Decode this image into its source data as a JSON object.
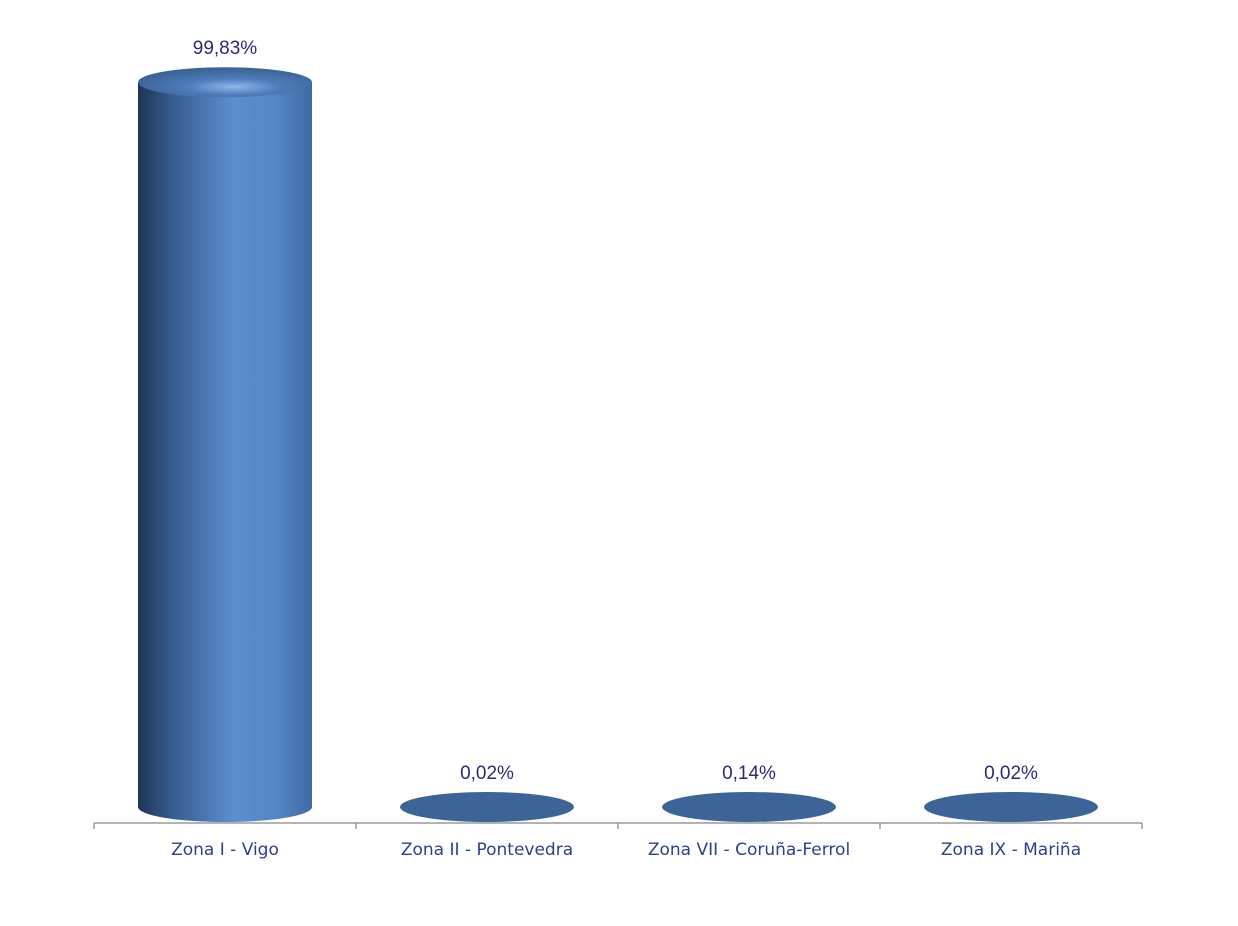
{
  "chart_data": {
    "type": "bar",
    "style": "3d-cylinder",
    "categories": [
      "Zona I - Vigo",
      "Zona II - Pontevedra",
      "Zona VII - Coruña-Ferrol",
      "Zona IX - Mariña"
    ],
    "values": [
      99.83,
      0.02,
      0.14,
      0.02
    ],
    "value_labels": [
      "99,83%",
      "0,02%",
      "0,14%",
      "0,02%"
    ],
    "unit": "%",
    "ylim": [
      0,
      100
    ],
    "grid": false,
    "legend": "none",
    "colors": {
      "bar_light": "#5b8fd0",
      "bar_mid": "#4a78b8",
      "bar_dark": "#1f3556",
      "cap": "#3d6496",
      "label_text": "#2b2a7a",
      "axis_text": "#2f3e8f",
      "axis_line": "#9a9a9a"
    }
  }
}
